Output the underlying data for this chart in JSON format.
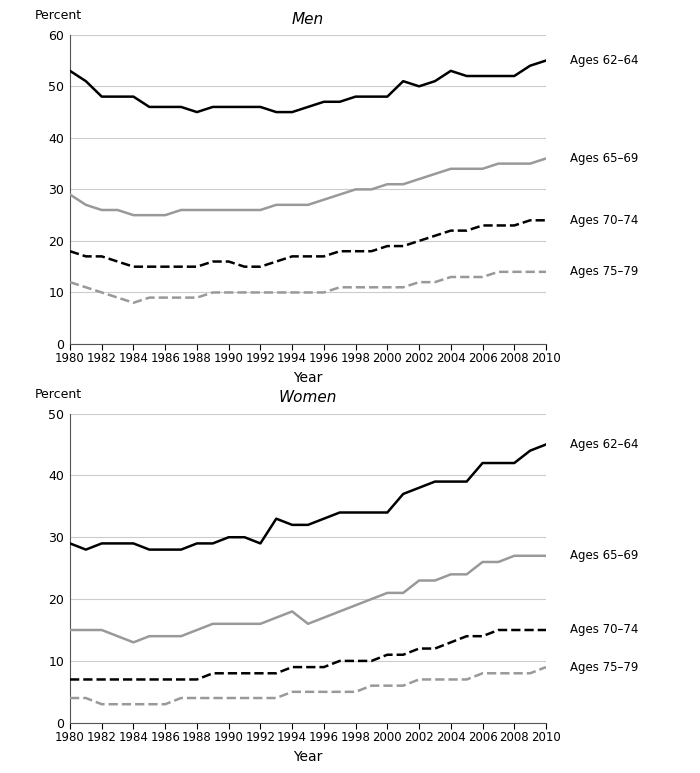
{
  "years": [
    1980,
    1981,
    1982,
    1983,
    1984,
    1985,
    1986,
    1987,
    1988,
    1989,
    1990,
    1991,
    1992,
    1993,
    1994,
    1995,
    1996,
    1997,
    1998,
    1999,
    2000,
    2001,
    2002,
    2003,
    2004,
    2005,
    2006,
    2007,
    2008,
    2009,
    2010
  ],
  "men": {
    "ages_62_64": [
      53,
      51,
      48,
      48,
      48,
      46,
      46,
      46,
      45,
      46,
      46,
      46,
      46,
      45,
      45,
      46,
      47,
      47,
      48,
      48,
      48,
      51,
      50,
      51,
      53,
      52,
      52,
      52,
      52,
      54,
      55
    ],
    "ages_65_69": [
      29,
      27,
      26,
      26,
      25,
      25,
      25,
      26,
      26,
      26,
      26,
      26,
      26,
      27,
      27,
      27,
      28,
      29,
      30,
      30,
      31,
      31,
      32,
      33,
      34,
      34,
      34,
      35,
      35,
      35,
      36
    ],
    "ages_70_74": [
      18,
      17,
      17,
      16,
      15,
      15,
      15,
      15,
      15,
      16,
      16,
      15,
      15,
      16,
      17,
      17,
      17,
      18,
      18,
      18,
      19,
      19,
      20,
      21,
      22,
      22,
      23,
      23,
      23,
      24,
      24
    ],
    "ages_75_79": [
      12,
      11,
      10,
      9,
      8,
      9,
      9,
      9,
      9,
      10,
      10,
      10,
      10,
      10,
      10,
      10,
      10,
      11,
      11,
      11,
      11,
      11,
      12,
      12,
      13,
      13,
      13,
      14,
      14,
      14,
      14
    ]
  },
  "women": {
    "ages_62_64": [
      29,
      28,
      29,
      29,
      29,
      28,
      28,
      28,
      29,
      29,
      30,
      30,
      29,
      33,
      32,
      32,
      33,
      34,
      34,
      34,
      34,
      37,
      38,
      39,
      39,
      39,
      42,
      42,
      42,
      44,
      45
    ],
    "ages_65_69": [
      15,
      15,
      15,
      14,
      13,
      14,
      14,
      14,
      15,
      16,
      16,
      16,
      16,
      17,
      18,
      16,
      17,
      18,
      19,
      20,
      21,
      21,
      23,
      23,
      24,
      24,
      26,
      26,
      27,
      27,
      27
    ],
    "ages_70_74": [
      7,
      7,
      7,
      7,
      7,
      7,
      7,
      7,
      7,
      8,
      8,
      8,
      8,
      8,
      9,
      9,
      9,
      10,
      10,
      10,
      11,
      11,
      12,
      12,
      13,
      14,
      14,
      15,
      15,
      15,
      15
    ],
    "ages_75_79": [
      4,
      4,
      3,
      3,
      3,
      3,
      3,
      4,
      4,
      4,
      4,
      4,
      4,
      4,
      5,
      5,
      5,
      5,
      5,
      6,
      6,
      6,
      7,
      7,
      7,
      7,
      8,
      8,
      8,
      8,
      9
    ]
  },
  "men_ylim": [
    0,
    60
  ],
  "men_yticks": [
    0,
    10,
    20,
    30,
    40,
    50,
    60
  ],
  "women_ylim": [
    0,
    50
  ],
  "women_yticks": [
    0,
    10,
    20,
    30,
    40,
    50
  ],
  "xlim": [
    1980,
    2010
  ],
  "xticks": [
    1980,
    1982,
    1984,
    1986,
    1988,
    1990,
    1992,
    1994,
    1996,
    1998,
    2000,
    2002,
    2004,
    2006,
    2008,
    2010
  ],
  "xlabel": "Year",
  "ylabel": "Percent",
  "men_title": "Men",
  "women_title": "Women",
  "line_styles": {
    "ages_62_64": {
      "color": "#000000",
      "linestyle": "-",
      "linewidth": 1.8
    },
    "ages_65_69": {
      "color": "#999999",
      "linestyle": "-",
      "linewidth": 1.8
    },
    "ages_70_74": {
      "color": "#000000",
      "linestyle": "--",
      "linewidth": 1.8
    },
    "ages_75_79": {
      "color": "#999999",
      "linestyle": "--",
      "linewidth": 1.8
    }
  },
  "legend_labels": {
    "ages_62_64": "Ages 62–64",
    "ages_65_69": "Ages 65–69",
    "ages_70_74": "Ages 70–74",
    "ages_75_79": "Ages 75–79"
  },
  "background_color": "#ffffff",
  "grid_color": "#cccccc"
}
